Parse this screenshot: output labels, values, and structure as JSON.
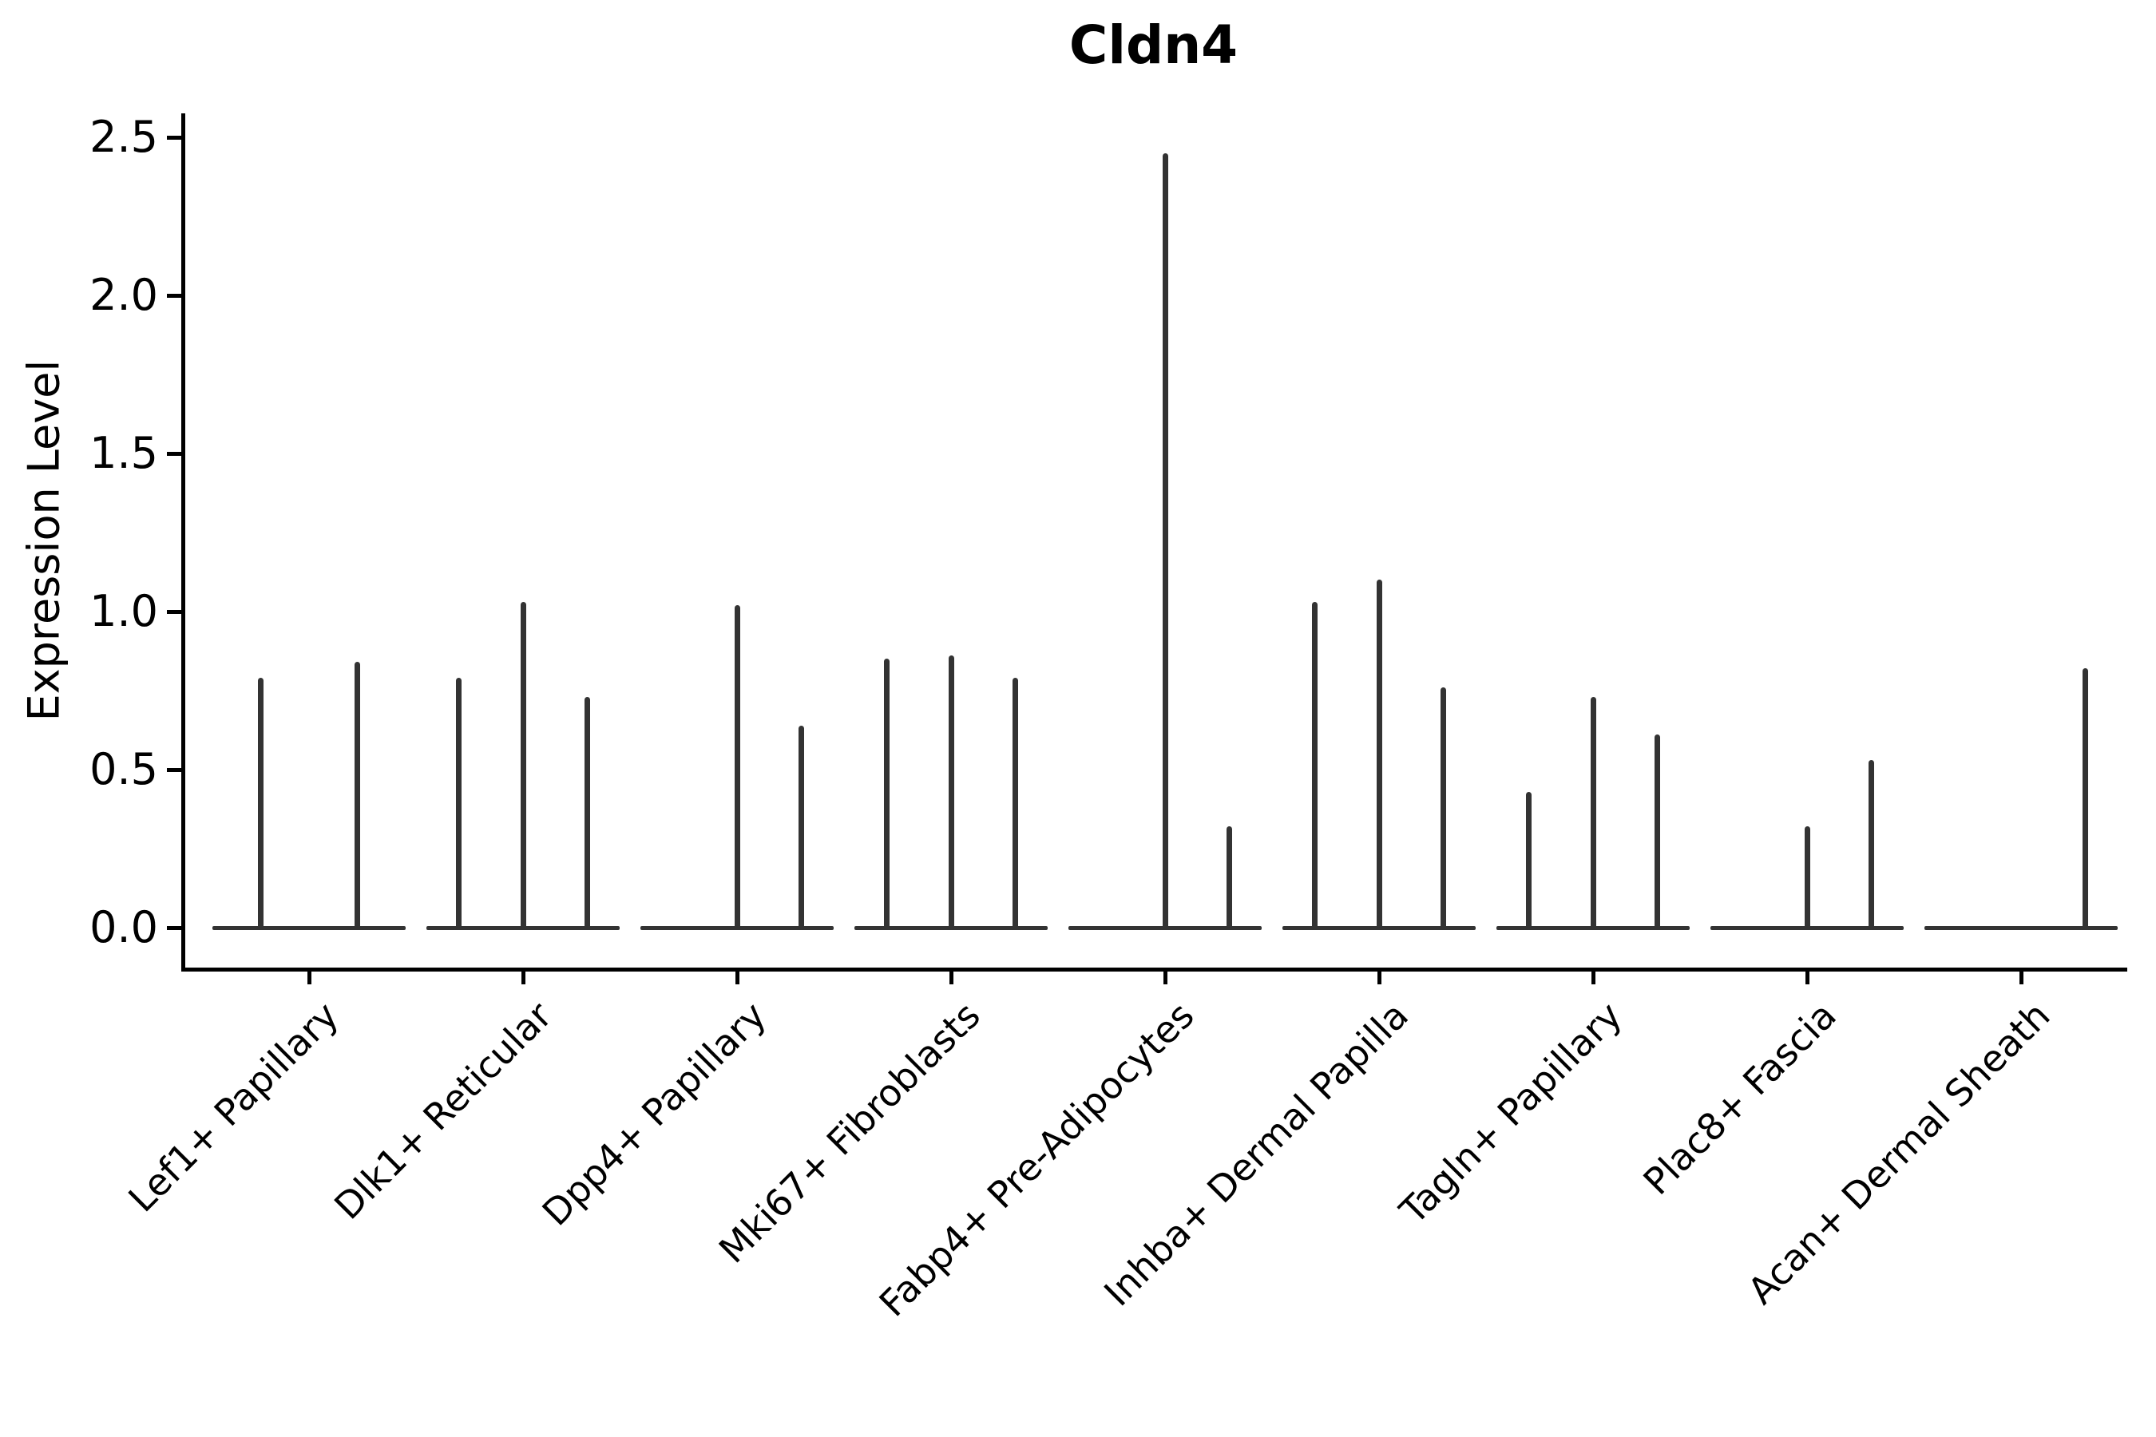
{
  "figure": {
    "background": "#ffffff",
    "axis_color": "#000000",
    "violin_color": "#333333"
  },
  "chart_data": {
    "type": "violin",
    "title": "Cldn4",
    "xlabel": "",
    "ylabel": "Expression Level",
    "ylim": [
      0,
      2.5
    ],
    "yticks": [
      "0.0",
      "0.5",
      "1.0",
      "1.5",
      "2.0",
      "2.5"
    ],
    "ytick_values": [
      0,
      0.5,
      1.0,
      1.5,
      2.0,
      2.5
    ],
    "grid": false,
    "legend_position": "none",
    "description": "Violin plot of Cldn4 expression; each category holds up to 3 extremely thin sample violins drawn as vertical spikes over a flat zero baseline. max = spike top (expression level); max 0 means a flat violin at baseline.",
    "categories": [
      {
        "label": "Lef1+ Papillary",
        "violins": [
          {
            "offset": -60.25,
            "max": 0.79
          },
          {
            "offset": 60.25,
            "max": 0.84
          }
        ]
      },
      {
        "label": "Dlk1+ Reticular",
        "violins": [
          {
            "offset": -80.5,
            "max": 0.79
          },
          {
            "offset": 0,
            "max": 1.03
          },
          {
            "offset": 80.5,
            "max": 0.73
          }
        ]
      },
      {
        "label": "Dpp4+ Papillary",
        "violins": [
          {
            "offset": -80.5,
            "max": 0
          },
          {
            "offset": 0,
            "max": 1.02
          },
          {
            "offset": 80.5,
            "max": 0.64
          }
        ]
      },
      {
        "label": "Mki67+ Fibroblasts",
        "violins": [
          {
            "offset": -80.5,
            "max": 0.85
          },
          {
            "offset": 0,
            "max": 0.86
          },
          {
            "offset": 80.5,
            "max": 0.79
          }
        ]
      },
      {
        "label": "Fabp4+ Pre-Adipocytes",
        "violins": [
          {
            "offset": -80.5,
            "max": 0
          },
          {
            "offset": 0,
            "max": 2.45
          },
          {
            "offset": 80.5,
            "max": 0.32
          }
        ]
      },
      {
        "label": "Inhba+ Dermal Papilla",
        "violins": [
          {
            "offset": -80.5,
            "max": 1.03
          },
          {
            "offset": 0,
            "max": 1.1
          },
          {
            "offset": 80.5,
            "max": 0.76
          }
        ]
      },
      {
        "label": "Tagln+ Papillary",
        "violins": [
          {
            "offset": -80.5,
            "max": 0.43
          },
          {
            "offset": 0,
            "max": 0.73
          },
          {
            "offset": 80.5,
            "max": 0.61
          }
        ]
      },
      {
        "label": "Plac8+ Fascia",
        "violins": [
          {
            "offset": -80.5,
            "max": 0
          },
          {
            "offset": 0,
            "max": 0.32
          },
          {
            "offset": 80.5,
            "max": 0.53
          }
        ]
      },
      {
        "label": "Acan+ Dermal Sheath",
        "violins": [
          {
            "offset": -80.5,
            "max": 0
          },
          {
            "offset": 0,
            "max": 0
          },
          {
            "offset": 80.5,
            "max": 0.82
          }
        ]
      }
    ]
  }
}
